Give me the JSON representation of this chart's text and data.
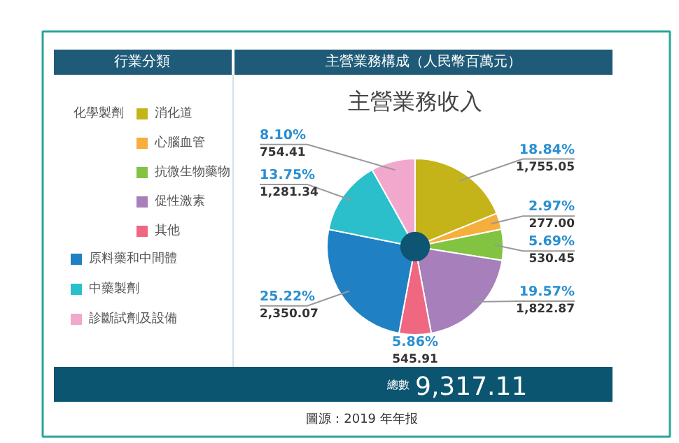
{
  "chart_data": {
    "type": "pie",
    "title": "主營業務收入",
    "subtitle": "主營業務構成（人民幣百萬元）",
    "legend_title": "行業分類",
    "legend": "left",
    "categories": [
      "消化道",
      "心腦血管",
      "抗微生物藥物",
      "促性激素",
      "其他",
      "原料藥和中間體",
      "中藥製劑",
      "診斷試劑及設備"
    ],
    "values": [
      1755.05,
      277.0,
      530.45,
      1822.87,
      545.91,
      2350.07,
      1281.34,
      754.41
    ],
    "colors": [
      "#c4b41a",
      "#f6ae3c",
      "#82c341",
      "#a67fbb",
      "#ef6780",
      "#1f80c4",
      "#2bbecb",
      "#f2a8cc"
    ],
    "value_labels": [
      "18.84%\n1,755.05",
      "2.97%\n277.00",
      "5.69%\n530.45",
      "19.57%\n1,822.87",
      "5.86%\n545.91",
      "25.22%\n2,350.07",
      "13.75%\n1,281.34",
      "8.10%\n754.41"
    ],
    "annotations": [
      "化學製劑",
      "總數",
      "9,317.11",
      "圖源：2019 年年报"
    ]
  }
}
